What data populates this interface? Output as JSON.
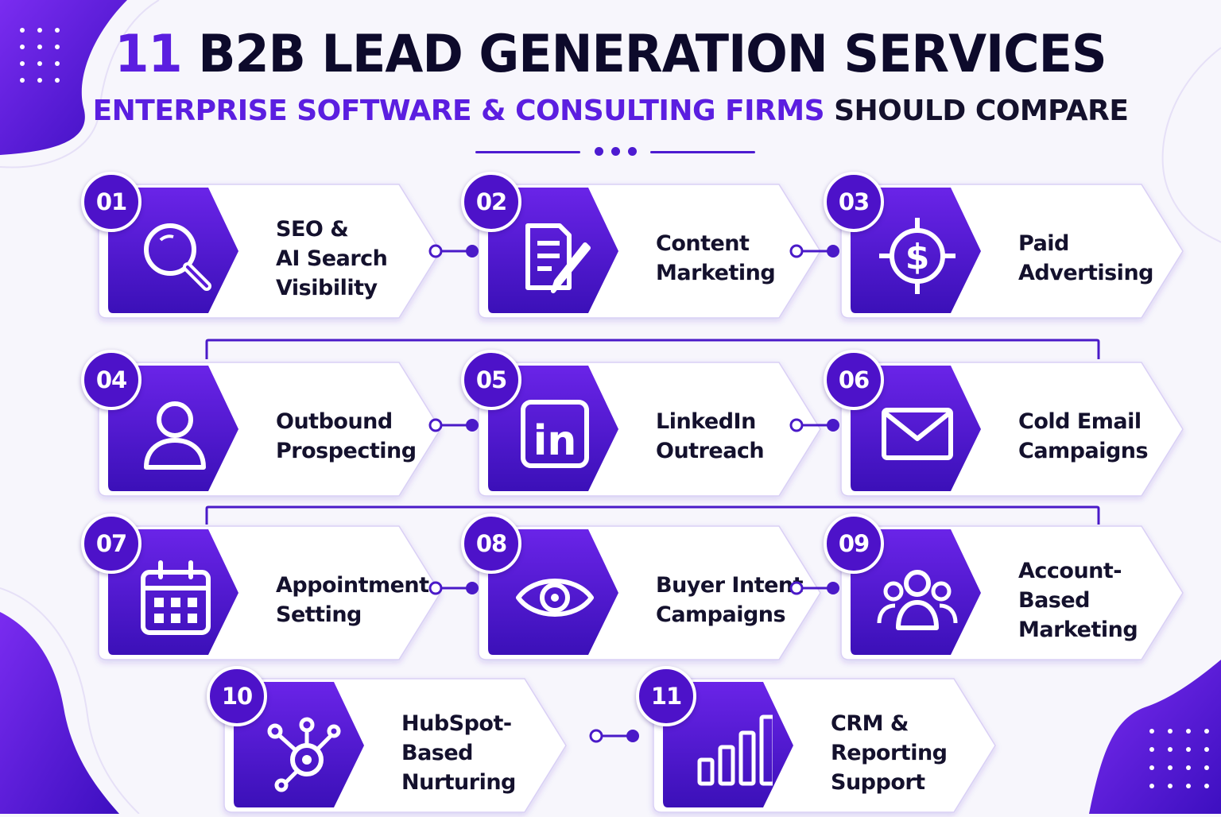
{
  "header": {
    "title_number": "11",
    "title_rest": "B2B LEAD GENERATION SERVICES",
    "subtitle_accent": "ENTERPRISE SOFTWARE & CONSULTING FIRMS",
    "subtitle_rest": "SHOULD COMPARE"
  },
  "colors": {
    "accent": "#5b1ee0",
    "dark_text": "#14112d",
    "gradient_start": "#6a24e8",
    "gradient_end": "#3b10b8",
    "background": "#f7f6fc"
  },
  "services": [
    {
      "number": "01",
      "label_lines": [
        "SEO &",
        "AI Search",
        "Visibility"
      ],
      "icon": "magnifying-glass-icon"
    },
    {
      "number": "02",
      "label_lines": [
        "Content",
        "Marketing"
      ],
      "icon": "document-pencil-icon"
    },
    {
      "number": "03",
      "label_lines": [
        "Paid",
        "Advertising"
      ],
      "icon": "dollar-target-icon"
    },
    {
      "number": "04",
      "label_lines": [
        "Outbound",
        "Prospecting"
      ],
      "icon": "user-icon"
    },
    {
      "number": "05",
      "label_lines": [
        "LinkedIn",
        "Outreach"
      ],
      "icon": "linkedin-icon"
    },
    {
      "number": "06",
      "label_lines": [
        "Cold Email",
        "Campaigns"
      ],
      "icon": "envelope-icon"
    },
    {
      "number": "07",
      "label_lines": [
        "Appointment",
        "Setting"
      ],
      "icon": "calendar-icon"
    },
    {
      "number": "08",
      "label_lines": [
        "Buyer Intent",
        "Campaigns"
      ],
      "icon": "eye-icon"
    },
    {
      "number": "09",
      "label_lines": [
        "Account-Based",
        "Marketing"
      ],
      "icon": "group-icon"
    },
    {
      "number": "10",
      "label_lines": [
        "HubSpot-Based",
        "Nurturing"
      ],
      "icon": "hubspot-icon"
    },
    {
      "number": "11",
      "label_lines": [
        "CRM & Reporting",
        "Support"
      ],
      "icon": "bar-chart-icon"
    }
  ]
}
